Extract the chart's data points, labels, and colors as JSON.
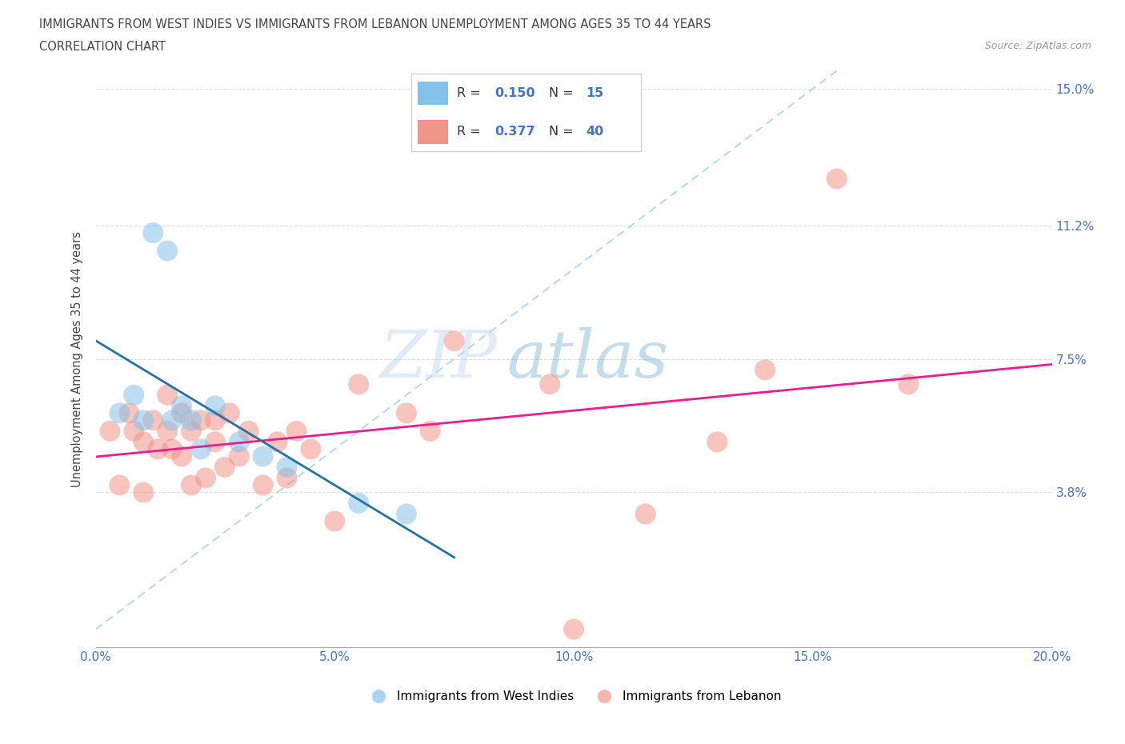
{
  "title_line1": "IMMIGRANTS FROM WEST INDIES VS IMMIGRANTS FROM LEBANON UNEMPLOYMENT AMONG AGES 35 TO 44 YEARS",
  "title_line2": "CORRELATION CHART",
  "source_text": "Source: ZipAtlas.com",
  "ylabel": "Unemployment Among Ages 35 to 44 years",
  "xlim": [
    0.0,
    0.2
  ],
  "ylim": [
    -0.005,
    0.155
  ],
  "xticks": [
    0.0,
    0.05,
    0.1,
    0.15,
    0.2
  ],
  "xtick_labels": [
    "0.0%",
    "5.0%",
    "10.0%",
    "15.0%",
    "20.0%"
  ],
  "ytick_labels": [
    "3.8%",
    "7.5%",
    "11.2%",
    "15.0%"
  ],
  "ytick_values": [
    0.038,
    0.075,
    0.112,
    0.15
  ],
  "watermark_part1": "ZIP",
  "watermark_part2": "atlas",
  "legend_r1": "R = 0.150",
  "legend_n1": "N = 15",
  "legend_r2": "R = 0.377",
  "legend_n2": "N = 40",
  "color_blue": "#85c1e9",
  "color_pink": "#f1948a",
  "line_color_blue": "#2471a3",
  "line_color_pink": "#e91e8c",
  "legend_label1": "Immigrants from West Indies",
  "legend_label2": "Immigrants from Lebanon",
  "west_indies_x": [
    0.005,
    0.008,
    0.01,
    0.012,
    0.015,
    0.016,
    0.018,
    0.02,
    0.022,
    0.025,
    0.03,
    0.035,
    0.04,
    0.055,
    0.065
  ],
  "west_indies_y": [
    0.06,
    0.065,
    0.058,
    0.11,
    0.105,
    0.058,
    0.062,
    0.058,
    0.05,
    0.062,
    0.052,
    0.048,
    0.045,
    0.035,
    0.032
  ],
  "lebanon_x": [
    0.003,
    0.005,
    0.007,
    0.008,
    0.01,
    0.01,
    0.012,
    0.013,
    0.015,
    0.015,
    0.016,
    0.018,
    0.018,
    0.02,
    0.02,
    0.022,
    0.023,
    0.025,
    0.025,
    0.027,
    0.028,
    0.03,
    0.032,
    0.035,
    0.038,
    0.04,
    0.042,
    0.045,
    0.05,
    0.055,
    0.065,
    0.07,
    0.075,
    0.095,
    0.1,
    0.115,
    0.13,
    0.14,
    0.155,
    0.17
  ],
  "lebanon_y": [
    0.055,
    0.04,
    0.06,
    0.055,
    0.052,
    0.038,
    0.058,
    0.05,
    0.065,
    0.055,
    0.05,
    0.06,
    0.048,
    0.055,
    0.04,
    0.058,
    0.042,
    0.058,
    0.052,
    0.045,
    0.06,
    0.048,
    0.055,
    0.04,
    0.052,
    0.042,
    0.055,
    0.05,
    0.03,
    0.068,
    0.06,
    0.055,
    0.08,
    0.068,
    0.0,
    0.032,
    0.052,
    0.072,
    0.125,
    0.068
  ],
  "grid_color": "#dddddd",
  "text_color": "#444444",
  "axis_label_color": "#4472c4"
}
